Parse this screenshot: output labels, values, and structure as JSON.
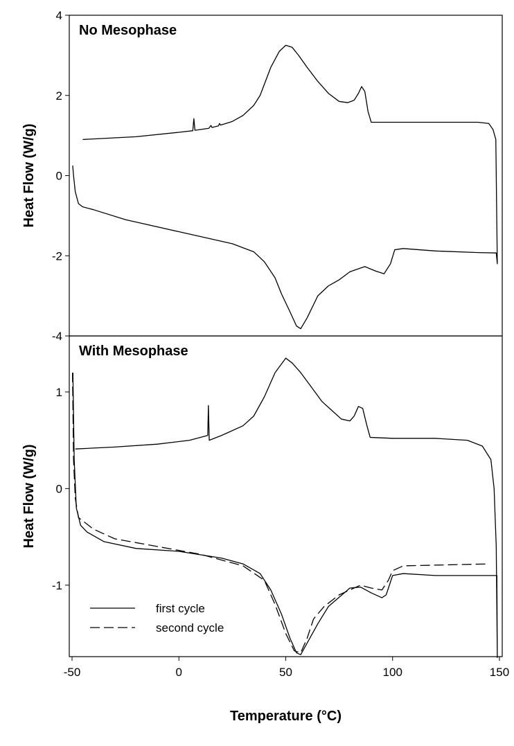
{
  "chart_data": [
    {
      "type": "line",
      "title": "No Mesophase",
      "ylabel": "Heat Flow (W/g)",
      "xlim": [
        -51.3,
        151.3
      ],
      "ylim": [
        -4,
        4
      ],
      "yticks": [
        -4,
        -2,
        0,
        2,
        4
      ],
      "series": [
        {
          "color": "#000000",
          "linestyle": "solid",
          "x": [
            -45,
            -20,
            0,
            6.5,
            7,
            7.5,
            14,
            15,
            15.5,
            18.5,
            19,
            19.5,
            25,
            30,
            35,
            38,
            43,
            47,
            50,
            53,
            56,
            60,
            65,
            70,
            75,
            79,
            82,
            84,
            85.5,
            87,
            88.5,
            90,
            100,
            120,
            140,
            145,
            147,
            148.3,
            149,
            148.5,
            140,
            120,
            105,
            101,
            99,
            96,
            92,
            87,
            80,
            75,
            70,
            65,
            60,
            57,
            55,
            52,
            48,
            45,
            40,
            35,
            25,
            0,
            -25,
            -40,
            -45,
            -47,
            -48.5,
            -49.3,
            -49.7
          ],
          "values": [
            0.9,
            0.97,
            1.08,
            1.12,
            1.42,
            1.13,
            1.18,
            1.25,
            1.2,
            1.24,
            1.3,
            1.26,
            1.35,
            1.5,
            1.75,
            2.0,
            2.7,
            3.1,
            3.25,
            3.2,
            3.0,
            2.7,
            2.35,
            2.05,
            1.85,
            1.82,
            1.88,
            2.05,
            2.22,
            2.1,
            1.6,
            1.33,
            1.33,
            1.33,
            1.33,
            1.3,
            1.15,
            0.9,
            -2.2,
            -1.93,
            -1.92,
            -1.88,
            -1.82,
            -1.85,
            -2.2,
            -2.45,
            -2.38,
            -2.27,
            -2.4,
            -2.6,
            -2.75,
            -3.0,
            -3.55,
            -3.82,
            -3.75,
            -3.4,
            -2.95,
            -2.55,
            -2.15,
            -1.9,
            -1.7,
            -1.4,
            -1.1,
            -0.85,
            -0.78,
            -0.7,
            -0.4,
            0.0,
            0.25
          ]
        }
      ]
    },
    {
      "type": "line",
      "title": "With Mesophase",
      "ylabel": "Heat Flow (W/g)",
      "xlabel": "Temperature (°C)",
      "xlim": [
        -51.3,
        151.3
      ],
      "xticks": [
        -50,
        0,
        50,
        100,
        150
      ],
      "ylim": [
        -1.74,
        1.58
      ],
      "yticks": [
        -1,
        0,
        1
      ],
      "legend": "lower left",
      "series": [
        {
          "name": "first cycle",
          "color": "#000000",
          "linestyle": "solid",
          "x": [
            -48.5,
            -30,
            -10,
            5,
            13.5,
            13.8,
            14.2,
            20,
            30,
            35,
            40,
            45,
            50,
            53,
            57,
            62,
            67,
            72,
            76,
            80,
            82,
            84,
            86,
            88,
            89.5,
            100,
            120,
            135,
            142,
            146,
            147.5,
            148.5,
            149,
            148.8,
            120,
            105,
            100,
            97,
            95,
            90,
            85,
            80,
            70,
            65,
            60,
            57,
            55,
            52,
            48,
            43,
            38,
            30,
            20,
            0,
            -20,
            -35,
            -43,
            -46,
            -48,
            -49,
            -49.6
          ],
          "values": [
            0.41,
            0.43,
            0.46,
            0.5,
            0.55,
            0.86,
            0.5,
            0.55,
            0.65,
            0.75,
            0.95,
            1.2,
            1.35,
            1.3,
            1.2,
            1.05,
            0.9,
            0.8,
            0.72,
            0.7,
            0.75,
            0.85,
            0.83,
            0.65,
            0.53,
            0.52,
            0.52,
            0.5,
            0.44,
            0.3,
            0.0,
            -0.6,
            -1.75,
            -0.9,
            -0.9,
            -0.88,
            -0.9,
            -1.1,
            -1.13,
            -1.08,
            -1.02,
            -1.03,
            -1.22,
            -1.4,
            -1.6,
            -1.72,
            -1.7,
            -1.55,
            -1.3,
            -1.05,
            -0.88,
            -0.78,
            -0.72,
            -0.65,
            -0.62,
            -0.55,
            -0.45,
            -0.38,
            -0.2,
            0.3,
            1.2
          ]
        },
        {
          "name": "second cycle",
          "color": "#000000",
          "linestyle": "dashed",
          "x": [
            -49.8,
            -49.3,
            -48.5,
            -47,
            -40,
            -30,
            -10,
            10,
            30,
            40,
            45,
            50,
            54,
            57,
            60,
            63,
            68,
            75,
            85,
            90,
            95,
            98,
            100,
            105,
            145
          ],
          "values": [
            1.2,
            0.3,
            -0.1,
            -0.3,
            -0.42,
            -0.52,
            -0.6,
            -0.68,
            -0.8,
            -0.95,
            -1.2,
            -1.5,
            -1.68,
            -1.7,
            -1.55,
            -1.35,
            -1.22,
            -1.1,
            -1.0,
            -1.03,
            -1.05,
            -0.95,
            -0.85,
            -0.8,
            -0.78
          ]
        }
      ]
    }
  ]
}
